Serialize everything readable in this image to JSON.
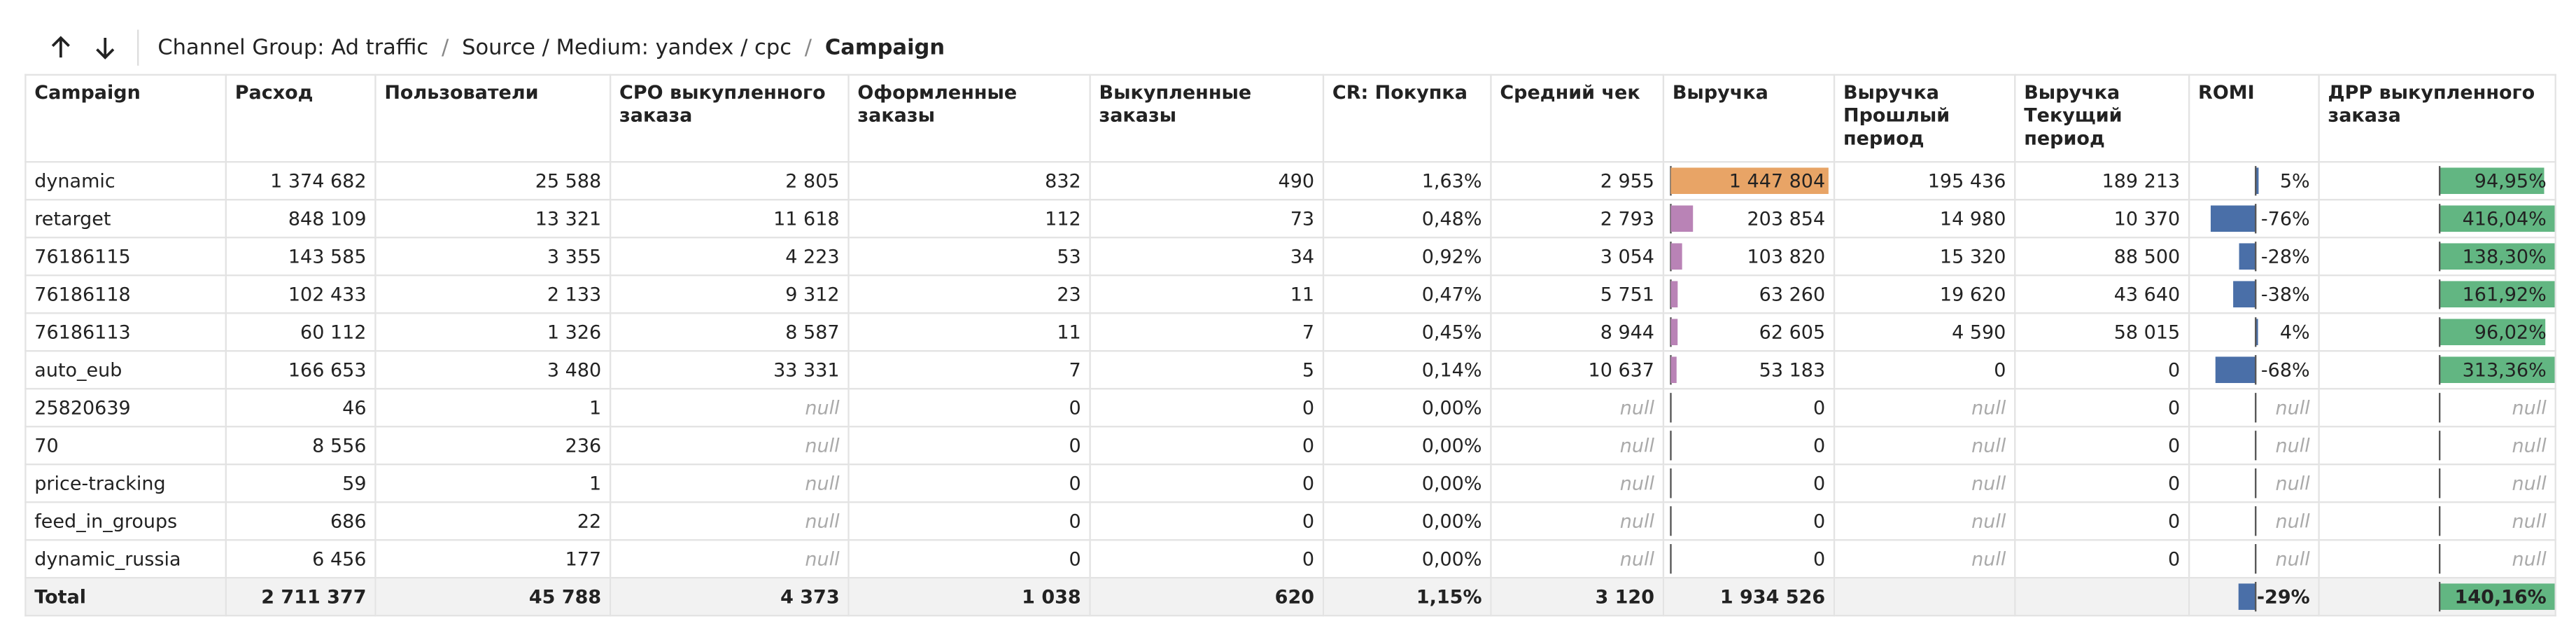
{
  "breadcrumbs": {
    "items": [
      "Channel Group: Ad traffic",
      "Source / Medium: yandex / cpc",
      "Campaign"
    ],
    "separator": "/"
  },
  "table": {
    "columns": [
      "Campaign",
      "Расход",
      "Пользователи",
      "CPO выкупленного\nзаказа",
      "Оформленные\nзаказы",
      "Выкупленные\nзаказы",
      "CR: Покупка",
      "Средний чек",
      "Выручка",
      "Выручка\nПрошлый\nпериод",
      "Выручка\nТекущий\nпериод",
      "ROMI",
      "ДРР выкупленного\nзаказа"
    ],
    "rows": [
      [
        "dynamic",
        "1 374 682",
        "25 588",
        "2 805",
        "832",
        "490",
        "1,63%",
        "2 955",
        {
          "value": 1447804,
          "label": "1 447 804",
          "color": "#e8a466"
        },
        "195 436",
        "189 213",
        {
          "value": 5,
          "label": "5%"
        },
        {
          "value": 94.95,
          "label": "94,95%"
        }
      ],
      [
        "retarget",
        "848 109",
        "13 321",
        "11 618",
        "112",
        "73",
        "0,48%",
        "2 793",
        {
          "value": 203854,
          "label": "203 854",
          "color": "#b983b6"
        },
        "14 980",
        "10 370",
        {
          "value": -76,
          "label": "-76%"
        },
        {
          "value": 416.04,
          "label": "416,04%"
        }
      ],
      [
        "76186115",
        "143 585",
        "3 355",
        "4 223",
        "53",
        "34",
        "0,92%",
        "3 054",
        {
          "value": 103820,
          "label": "103 820",
          "color": "#b983b6"
        },
        "15 320",
        "88 500",
        {
          "value": -28,
          "label": "-28%"
        },
        {
          "value": 138.3,
          "label": "138,30%"
        }
      ],
      [
        "76186118",
        "102 433",
        "2 133",
        "9 312",
        "23",
        "11",
        "0,47%",
        "5 751",
        {
          "value": 63260,
          "label": "63 260",
          "color": "#b983b6"
        },
        "19 620",
        "43 640",
        {
          "value": -38,
          "label": "-38%"
        },
        {
          "value": 161.92,
          "label": "161,92%"
        }
      ],
      [
        "76186113",
        "60 112",
        "1 326",
        "8 587",
        "11",
        "7",
        "0,45%",
        "8 944",
        {
          "value": 62605,
          "label": "62 605",
          "color": "#b983b6"
        },
        "4 590",
        "58 015",
        {
          "value": 4,
          "label": "4%"
        },
        {
          "value": 96.02,
          "label": "96,02%"
        }
      ],
      [
        "auto_eub",
        "166 653",
        "3 480",
        "33 331",
        "7",
        "5",
        "0,14%",
        "10 637",
        {
          "value": 53183,
          "label": "53 183",
          "color": "#b983b6"
        },
        "0",
        "0",
        {
          "value": -68,
          "label": "-68%"
        },
        {
          "value": 313.36,
          "label": "313,36%"
        }
      ],
      [
        "25820639",
        "46",
        "1",
        "null",
        "0",
        "0",
        "0,00%",
        "null",
        {
          "value": 0,
          "label": "0",
          "color": "#b983b6"
        },
        "null",
        "0",
        {
          "value": null,
          "label": "null"
        },
        {
          "value": null,
          "label": "null"
        }
      ],
      [
        "70",
        "8 556",
        "236",
        "null",
        "0",
        "0",
        "0,00%",
        "null",
        {
          "value": 0,
          "label": "0",
          "color": "#b983b6"
        },
        "null",
        "0",
        {
          "value": null,
          "label": "null"
        },
        {
          "value": null,
          "label": "null"
        }
      ],
      [
        "price-tracking",
        "59",
        "1",
        "null",
        "0",
        "0",
        "0,00%",
        "null",
        {
          "value": 0,
          "label": "0",
          "color": "#b983b6"
        },
        "null",
        "0",
        {
          "value": null,
          "label": "null"
        },
        {
          "value": null,
          "label": "null"
        }
      ],
      [
        "feed_in_groups",
        "686",
        "22",
        "null",
        "0",
        "0",
        "0,00%",
        "null",
        {
          "value": 0,
          "label": "0",
          "color": "#b983b6"
        },
        "null",
        "0",
        {
          "value": null,
          "label": "null"
        },
        {
          "value": null,
          "label": "null"
        }
      ],
      [
        "dynamic_russia",
        "6 456",
        "177",
        "null",
        "0",
        "0",
        "0,00%",
        "null",
        {
          "value": 0,
          "label": "0",
          "color": "#b983b6"
        },
        "null",
        "0",
        {
          "value": null,
          "label": "null"
        },
        {
          "value": null,
          "label": "null"
        }
      ]
    ],
    "total": [
      "Total",
      "2 711 377",
      "45 788",
      "4 373",
      "1 038",
      "620",
      "1,15%",
      "3 120",
      "1 934 526",
      null,
      null,
      {
        "value": -29,
        "label": "-29%"
      },
      {
        "value": 140.16,
        "label": "140,16%"
      }
    ],
    "romi_color": "#4a6fa8",
    "drr_color": "#62b682"
  }
}
